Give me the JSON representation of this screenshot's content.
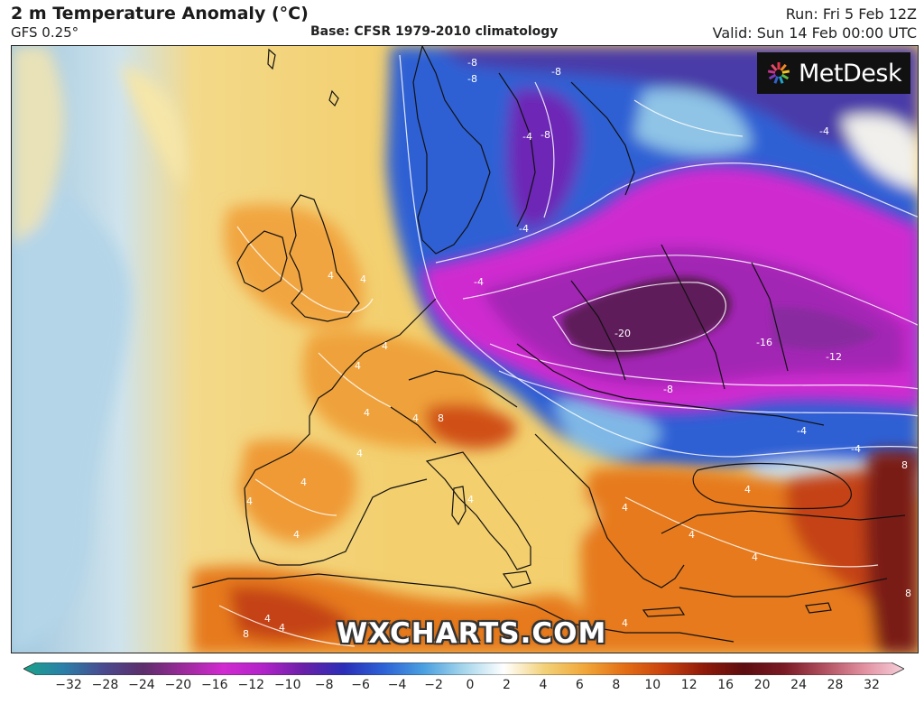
{
  "header": {
    "title": "2 m Temperature Anomaly (°C)",
    "model": "GFS 0.25°",
    "base": "Base: CFSR 1979-2010 climatology",
    "run": "Run: Fri 5 Feb 12Z",
    "valid": "Valid: Sun 14 Feb 00:00 UTC"
  },
  "logo": {
    "brand": "MetDesk",
    "icon": "starburst-icon"
  },
  "watermark": "WXCHARTS.COM",
  "legend": {
    "ticks": [
      "−32",
      "−28",
      "−24",
      "−20",
      "−16",
      "−12",
      "−10",
      "−8",
      "−6",
      "−4",
      "−2",
      "0",
      "2",
      "4",
      "6",
      "8",
      "10",
      "12",
      "16",
      "20",
      "24",
      "28",
      "32"
    ],
    "colors": [
      "#1aa38a",
      "#2b7fa8",
      "#4a4a8f",
      "#5d2e6b",
      "#9b2a9b",
      "#d12ad1",
      "#b023c8",
      "#6a20a8",
      "#2a2eb8",
      "#2d62d6",
      "#4aa0e0",
      "#a6d6ec",
      "#ffffff",
      "#f3d27a",
      "#f1a83a",
      "#e46f16",
      "#c9420f",
      "#8f1a0a",
      "#5d0d10",
      "#7a1a25",
      "#b05060",
      "#e290a0",
      "#f6d0dc"
    ]
  },
  "contour_labels": [
    "-8",
    "-8",
    "-8",
    "-4",
    "-8",
    "-4",
    "-4",
    "-4",
    "-20",
    "-16",
    "-12",
    "-8",
    "-4",
    "-4",
    "4",
    "4",
    "4",
    "4",
    "4",
    "4",
    "4",
    "8",
    "4",
    "4",
    "4",
    "4",
    "4",
    "4",
    "4",
    "4",
    "8",
    "8",
    "8",
    "4",
    "4",
    "4"
  ],
  "colors": {
    "ocean_west": "#a9cfe4",
    "atlantic_warm": "#f2d787",
    "land_warm": "#f0a53a",
    "hot": "#c9420f",
    "cold_blue": "#2d62d6",
    "cold_magenta": "#d12ad1",
    "core": "#5d1f5c"
  }
}
